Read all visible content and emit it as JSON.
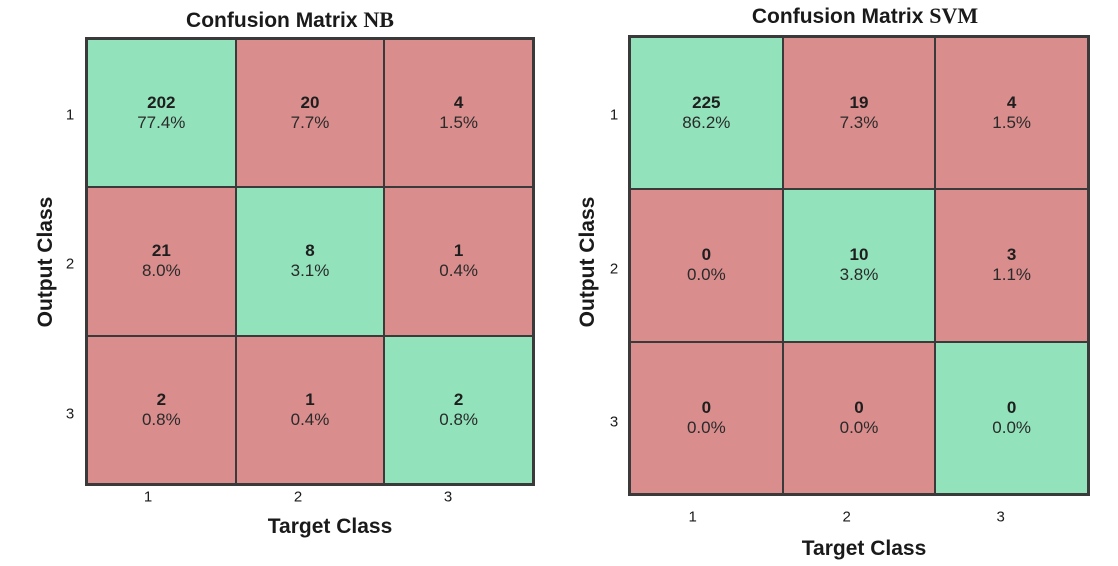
{
  "chart_data": [
    {
      "type": "heatmap",
      "title": "Confusion Matrix NB",
      "title_main": "Confusion Matrix",
      "title_suffix": "NB",
      "xlabel": "Target Class",
      "ylabel": "Output Class",
      "x_ticks": [
        "1",
        "2",
        "3"
      ],
      "y_ticks": [
        "1",
        "2",
        "3"
      ],
      "counts": [
        [
          202,
          20,
          4
        ],
        [
          21,
          8,
          1
        ],
        [
          2,
          1,
          2
        ]
      ],
      "percents": [
        [
          "77.4%",
          "7.7%",
          "1.5%"
        ],
        [
          "8.0%",
          "3.1%",
          "0.4%"
        ],
        [
          "0.8%",
          "0.4%",
          "0.8%"
        ]
      ]
    },
    {
      "type": "heatmap",
      "title": "Confusion Matrix SVM",
      "title_main": "Confusion Matrix",
      "title_suffix": "SVM",
      "xlabel": "Target Class",
      "ylabel": "Output Class",
      "x_ticks": [
        "1",
        "2",
        "3"
      ],
      "y_ticks": [
        "1",
        "2",
        "3"
      ],
      "counts": [
        [
          225,
          19,
          4
        ],
        [
          0,
          10,
          3
        ],
        [
          0,
          0,
          0
        ]
      ],
      "percents": [
        [
          "86.2%",
          "7.3%",
          "1.5%"
        ],
        [
          "0.0%",
          "3.8%",
          "1.1%"
        ],
        [
          "0.0%",
          "0.0%",
          "0.0%"
        ]
      ]
    }
  ],
  "colors": {
    "correct": "#92e2bb",
    "incorrect": "#d98d8c",
    "border": "#3a3a3a"
  }
}
